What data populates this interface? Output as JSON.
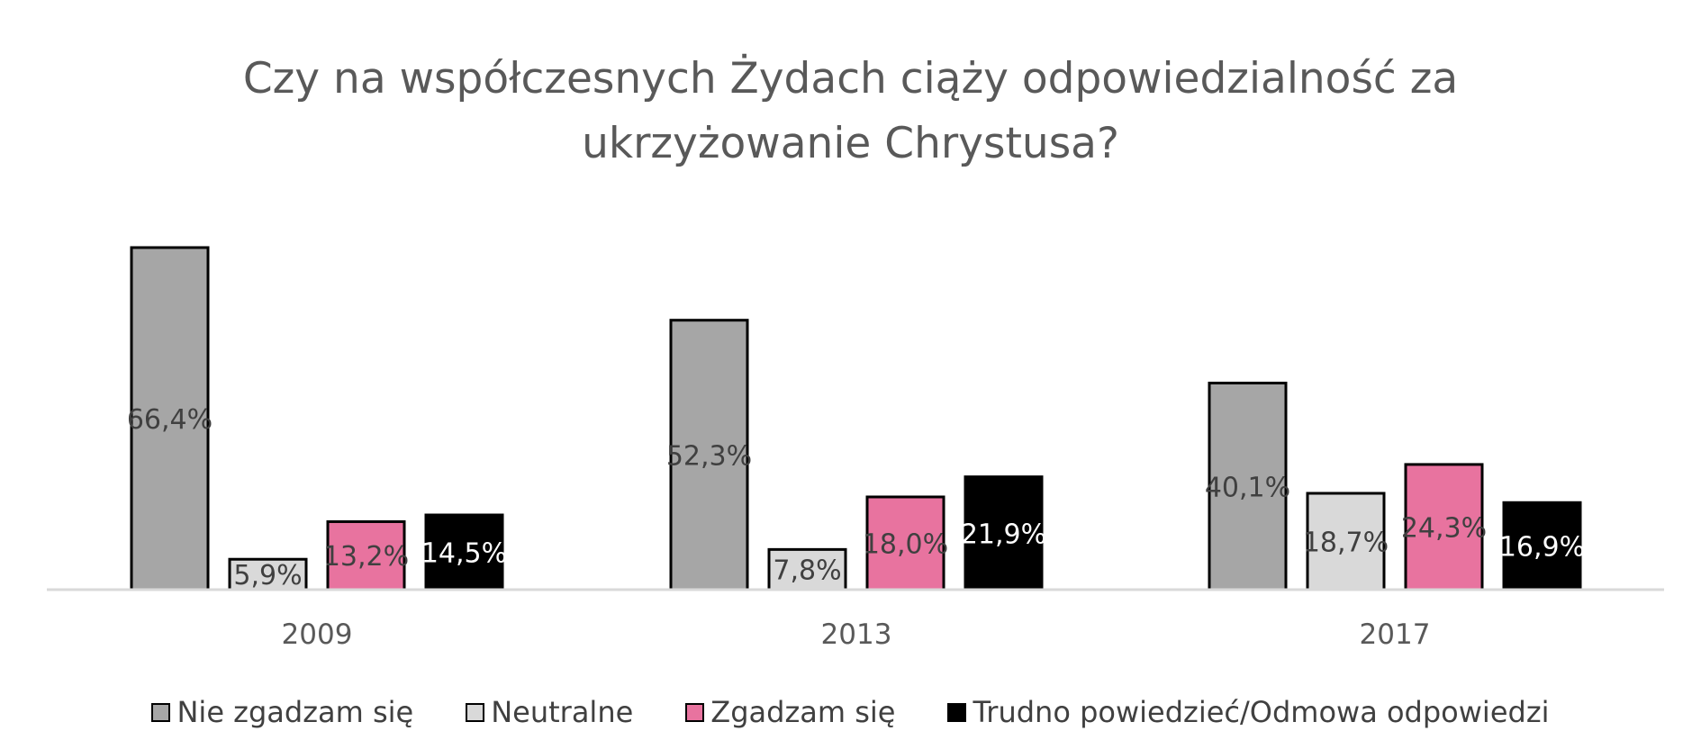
{
  "title": {
    "line1": "Czy na współczesnych Żydach ciąży odpowiedzialność za",
    "line2": "ukrzyżowanie Chrystusa?"
  },
  "colors": {
    "nie_zgadzam": "#a6a6a6",
    "neutralne": "#d9d9d9",
    "zgadzam": "#e8739f",
    "trudno": "#000000",
    "axis": "#d9d9d9",
    "label_dark": "#404040",
    "label_light": "#ffffff"
  },
  "legend": [
    {
      "label": "Nie zgadzam się",
      "color": "#a6a6a6"
    },
    {
      "label": "Neutralne",
      "color": "#d9d9d9"
    },
    {
      "label": "Zgadzam się",
      "color": "#e8739f"
    },
    {
      "label": "Trudno powiedzieć/Odmowa odpowiedzi",
      "color": "#000000"
    }
  ],
  "chart_data": {
    "type": "bar",
    "title": "Czy na współczesnych Żydach ciąży odpowiedzialność za ukrzyżowanie Chrystusa?",
    "categories": [
      "2009",
      "2013",
      "2017"
    ],
    "series": [
      {
        "name": "Nie zgadzam się",
        "values": [
          66.4,
          52.3,
          40.1
        ],
        "labels": [
          "66,4%",
          "52,3%",
          "40,1%"
        ],
        "color": "#a6a6a6",
        "label_color": "#404040"
      },
      {
        "name": "Neutralne",
        "values": [
          5.9,
          7.8,
          18.7
        ],
        "labels": [
          "5,9%",
          "7,8%",
          "18,7%"
        ],
        "color": "#d9d9d9",
        "label_color": "#404040"
      },
      {
        "name": "Zgadzam się",
        "values": [
          13.2,
          18.0,
          24.3
        ],
        "labels": [
          "13,2%",
          "18,0%",
          "24,3%"
        ],
        "color": "#e8739f",
        "label_color": "#404040"
      },
      {
        "name": "Trudno powiedzieć/Odmowa odpowiedzi",
        "values": [
          14.5,
          21.9,
          16.9
        ],
        "labels": [
          "14,5%",
          "21,9%",
          "16,9%"
        ],
        "color": "#000000",
        "label_color": "#ffffff"
      }
    ],
    "ylim": [
      0,
      70
    ],
    "grid": false,
    "legend_position": "bottom"
  }
}
